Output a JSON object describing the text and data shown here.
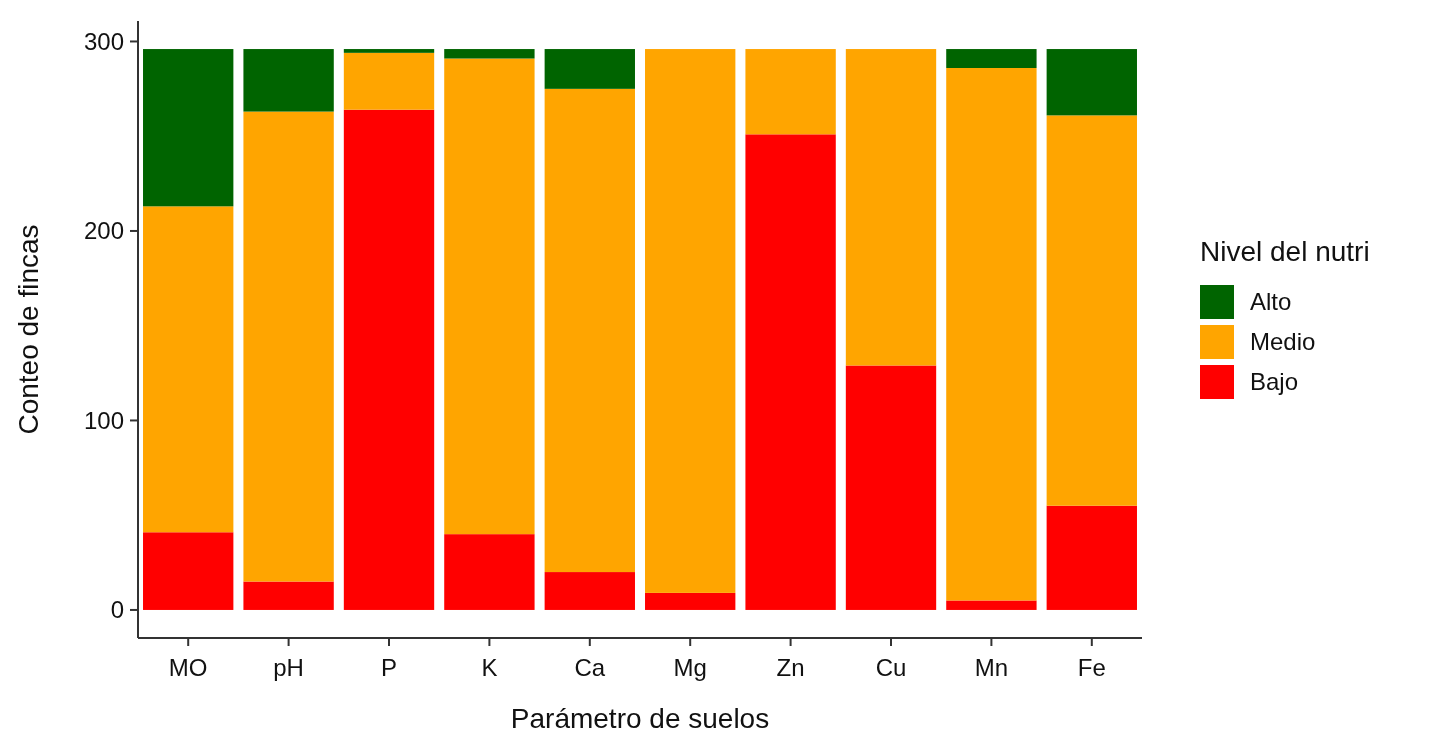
{
  "chart_data": {
    "type": "bar",
    "stacked": true,
    "xlabel": "Parámetro de suelos",
    "ylabel": "Conteo de fincas",
    "legend_title": "Nivel del nutri",
    "legend": "right",
    "grid": false,
    "categories": [
      "MO",
      "pH",
      "P",
      "K",
      "Ca",
      "Mg",
      "Zn",
      "Cu",
      "Mn",
      "Fe"
    ],
    "ylim": [
      -14.8,
      310.8
    ],
    "yticks": [
      0,
      100,
      200,
      300
    ],
    "series": [
      {
        "name": "Bajo",
        "color": "#ff0000",
        "values": [
          41,
          15,
          264,
          40,
          20,
          9,
          251,
          129,
          5,
          55
        ]
      },
      {
        "name": "Medio",
        "color": "#ffa500",
        "values": [
          172,
          248,
          30,
          251,
          255,
          287,
          45,
          167,
          281,
          206
        ]
      },
      {
        "name": "Alto",
        "color": "#006400",
        "values": [
          83,
          33,
          2,
          5,
          21,
          0,
          0,
          0,
          10,
          35
        ]
      }
    ]
  }
}
